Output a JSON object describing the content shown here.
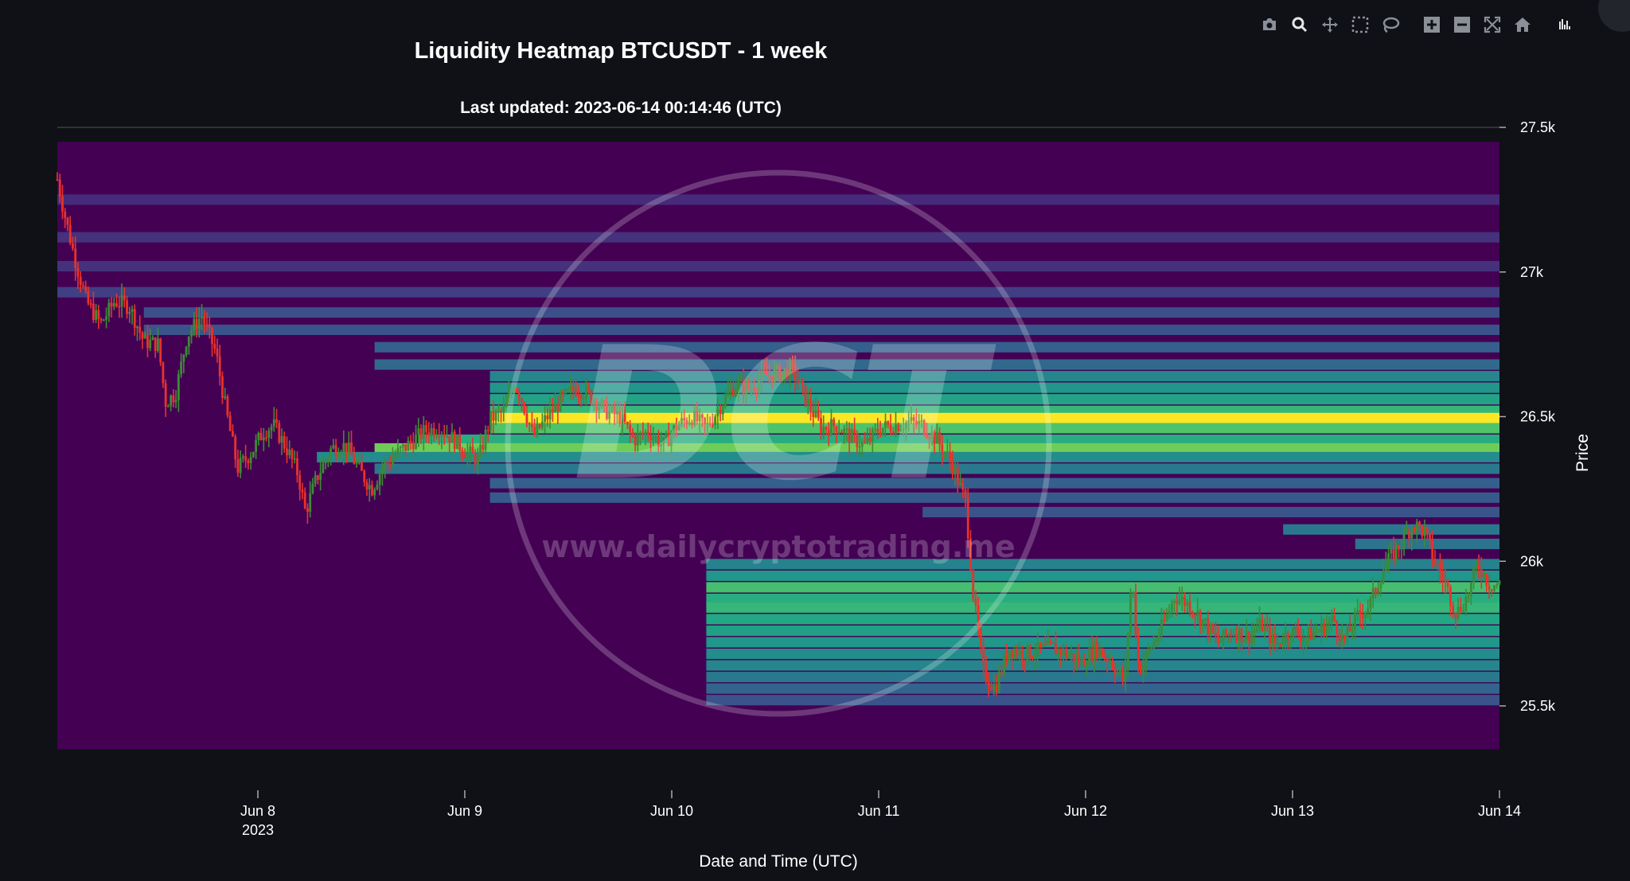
{
  "title": "Liquidity Heatmap BTCUSDT - 1 week",
  "subtitle": "Last updated: 2023-06-14 00:14:46 (UTC)",
  "watermark": {
    "monogram": "DCT",
    "url": "www.dailycryptotrading.me"
  },
  "modebar": [
    "camera-icon",
    "zoom-icon",
    "pan-icon",
    "box-select-icon",
    "lasso-select-icon",
    "zoom-in-icon",
    "zoom-out-icon",
    "autoscale-icon",
    "reset-axes-icon",
    "plotly-logo-icon"
  ],
  "colors": {
    "background": "#0f1117",
    "up": "#3d8b37",
    "down": "#e8322b",
    "colorscale": [
      "#440154",
      "#482475",
      "#414487",
      "#355f8d",
      "#2a788e",
      "#21918c",
      "#22a884",
      "#44bf70",
      "#7ad151",
      "#bddf26",
      "#fde725"
    ]
  },
  "chart_data": {
    "type": "heatmap",
    "overlay": "candlestick",
    "xlabel": "Date and Time (UTC)",
    "ylabel": "Price",
    "xlim": [
      "2023-06-07 00:00",
      "2023-06-14 00:00"
    ],
    "ylim": [
      25350,
      27550
    ],
    "x_ticks": [
      "Jun 8\n2023",
      "Jun 9",
      "Jun 10",
      "Jun 11",
      "Jun 12",
      "Jun 13",
      "Jun 14"
    ],
    "y_ticks": [
      "25.5k",
      "26k",
      "26.5k",
      "27k",
      "27.5k"
    ],
    "y_tick_values": [
      25500,
      26000,
      26500,
      27000,
      27500
    ],
    "heatmap_bands": [
      {
        "price": 27250,
        "level": 0.12,
        "start": 0.0
      },
      {
        "price": 27120,
        "level": 0.14,
        "start": 0.0
      },
      {
        "price": 27020,
        "level": 0.14,
        "start": 0.0
      },
      {
        "price": 26930,
        "level": 0.18,
        "start": 0.0
      },
      {
        "price": 26860,
        "level": 0.24,
        "start": 0.06
      },
      {
        "price": 26800,
        "level": 0.26,
        "start": 0.06
      },
      {
        "price": 26740,
        "level": 0.3,
        "start": 0.22
      },
      {
        "price": 26680,
        "level": 0.34,
        "start": 0.22
      },
      {
        "price": 26640,
        "level": 0.45,
        "start": 0.3
      },
      {
        "price": 26600,
        "level": 0.52,
        "start": 0.3
      },
      {
        "price": 26560,
        "level": 0.58,
        "start": 0.3
      },
      {
        "price": 26520,
        "level": 0.66,
        "start": 0.3
      },
      {
        "price": 26495,
        "level": 1.0,
        "start": 0.3
      },
      {
        "price": 26460,
        "level": 0.72,
        "start": 0.3
      },
      {
        "price": 26420,
        "level": 0.62,
        "start": 0.25
      },
      {
        "price": 26390,
        "level": 0.78,
        "start": 0.22
      },
      {
        "price": 26360,
        "level": 0.48,
        "start": 0.18
      },
      {
        "price": 26320,
        "level": 0.4,
        "start": 0.22
      },
      {
        "price": 26270,
        "level": 0.3,
        "start": 0.3
      },
      {
        "price": 26220,
        "level": 0.28,
        "start": 0.3
      },
      {
        "price": 26170,
        "level": 0.26,
        "start": 0.6
      },
      {
        "price": 26110,
        "level": 0.4,
        "start": 0.85
      },
      {
        "price": 26060,
        "level": 0.38,
        "start": 0.9
      },
      {
        "price": 25990,
        "level": 0.44,
        "start": 0.45
      },
      {
        "price": 25950,
        "level": 0.52,
        "start": 0.45
      },
      {
        "price": 25910,
        "level": 0.7,
        "start": 0.45
      },
      {
        "price": 25870,
        "level": 0.62,
        "start": 0.45
      },
      {
        "price": 25840,
        "level": 0.66,
        "start": 0.45
      },
      {
        "price": 25800,
        "level": 0.6,
        "start": 0.45
      },
      {
        "price": 25760,
        "level": 0.56,
        "start": 0.45
      },
      {
        "price": 25720,
        "level": 0.52,
        "start": 0.45
      },
      {
        "price": 25680,
        "level": 0.48,
        "start": 0.45
      },
      {
        "price": 25640,
        "level": 0.46,
        "start": 0.45
      },
      {
        "price": 25600,
        "level": 0.4,
        "start": 0.45
      },
      {
        "price": 25560,
        "level": 0.32,
        "start": 0.45
      },
      {
        "price": 25520,
        "level": 0.26,
        "start": 0.45
      }
    ],
    "price_path": [
      [
        0.0,
        27320
      ],
      [
        0.005,
        27200
      ],
      [
        0.012,
        27050
      ],
      [
        0.02,
        26900
      ],
      [
        0.03,
        26820
      ],
      [
        0.04,
        26900
      ],
      [
        0.05,
        26880
      ],
      [
        0.06,
        26760
      ],
      [
        0.07,
        26750
      ],
      [
        0.075,
        26550
      ],
      [
        0.082,
        26580
      ],
      [
        0.09,
        26780
      ],
      [
        0.1,
        26850
      ],
      [
        0.11,
        26720
      ],
      [
        0.117,
        26520
      ],
      [
        0.125,
        26320
      ],
      [
        0.135,
        26380
      ],
      [
        0.143,
        26450
      ],
      [
        0.15,
        26470
      ],
      [
        0.16,
        26380
      ],
      [
        0.167,
        26300
      ],
      [
        0.172,
        26170
      ],
      [
        0.18,
        26290
      ],
      [
        0.19,
        26390
      ],
      [
        0.2,
        26400
      ],
      [
        0.21,
        26310
      ],
      [
        0.218,
        26250
      ],
      [
        0.225,
        26320
      ],
      [
        0.235,
        26370
      ],
      [
        0.245,
        26410
      ],
      [
        0.255,
        26450
      ],
      [
        0.265,
        26460
      ],
      [
        0.275,
        26420
      ],
      [
        0.283,
        26380
      ],
      [
        0.292,
        26350
      ],
      [
        0.3,
        26490
      ],
      [
        0.31,
        26520
      ],
      [
        0.317,
        26620
      ],
      [
        0.322,
        26560
      ],
      [
        0.33,
        26430
      ],
      [
        0.34,
        26500
      ],
      [
        0.35,
        26560
      ],
      [
        0.36,
        26600
      ],
      [
        0.37,
        26570
      ],
      [
        0.38,
        26520
      ],
      [
        0.39,
        26500
      ],
      [
        0.4,
        26420
      ],
      [
        0.41,
        26450
      ],
      [
        0.42,
        26400
      ],
      [
        0.43,
        26470
      ],
      [
        0.44,
        26500
      ],
      [
        0.45,
        26460
      ],
      [
        0.46,
        26540
      ],
      [
        0.47,
        26610
      ],
      [
        0.48,
        26600
      ],
      [
        0.49,
        26640
      ],
      [
        0.5,
        26650
      ],
      [
        0.51,
        26660
      ],
      [
        0.52,
        26550
      ],
      [
        0.53,
        26460
      ],
      [
        0.54,
        26470
      ],
      [
        0.55,
        26430
      ],
      [
        0.56,
        26400
      ],
      [
        0.57,
        26460
      ],
      [
        0.58,
        26470
      ],
      [
        0.59,
        26480
      ],
      [
        0.6,
        26470
      ],
      [
        0.61,
        26420
      ],
      [
        0.62,
        26340
      ],
      [
        0.63,
        26200
      ],
      [
        0.635,
        25890
      ],
      [
        0.642,
        25620
      ],
      [
        0.65,
        25560
      ],
      [
        0.66,
        25700
      ],
      [
        0.67,
        25680
      ],
      [
        0.68,
        25690
      ],
      [
        0.69,
        25700
      ],
      [
        0.7,
        25680
      ],
      [
        0.71,
        25650
      ],
      [
        0.72,
        25700
      ],
      [
        0.73,
        25660
      ],
      [
        0.74,
        25580
      ],
      [
        0.745,
        25950
      ],
      [
        0.75,
        25620
      ],
      [
        0.758,
        25700
      ],
      [
        0.765,
        25760
      ],
      [
        0.775,
        25880
      ],
      [
        0.785,
        25850
      ],
      [
        0.795,
        25790
      ],
      [
        0.805,
        25720
      ],
      [
        0.815,
        25760
      ],
      [
        0.825,
        25740
      ],
      [
        0.835,
        25780
      ],
      [
        0.845,
        25710
      ],
      [
        0.855,
        25760
      ],
      [
        0.865,
        25740
      ],
      [
        0.875,
        25760
      ],
      [
        0.885,
        25800
      ],
      [
        0.892,
        25720
      ],
      [
        0.9,
        25800
      ],
      [
        0.91,
        25850
      ],
      [
        0.92,
        25980
      ],
      [
        0.93,
        26050
      ],
      [
        0.94,
        26130
      ],
      [
        0.948,
        26100
      ],
      [
        0.955,
        26000
      ],
      [
        0.962,
        25930
      ],
      [
        0.97,
        25820
      ],
      [
        0.978,
        25880
      ],
      [
        0.985,
        25990
      ],
      [
        0.993,
        25920
      ]
    ]
  }
}
